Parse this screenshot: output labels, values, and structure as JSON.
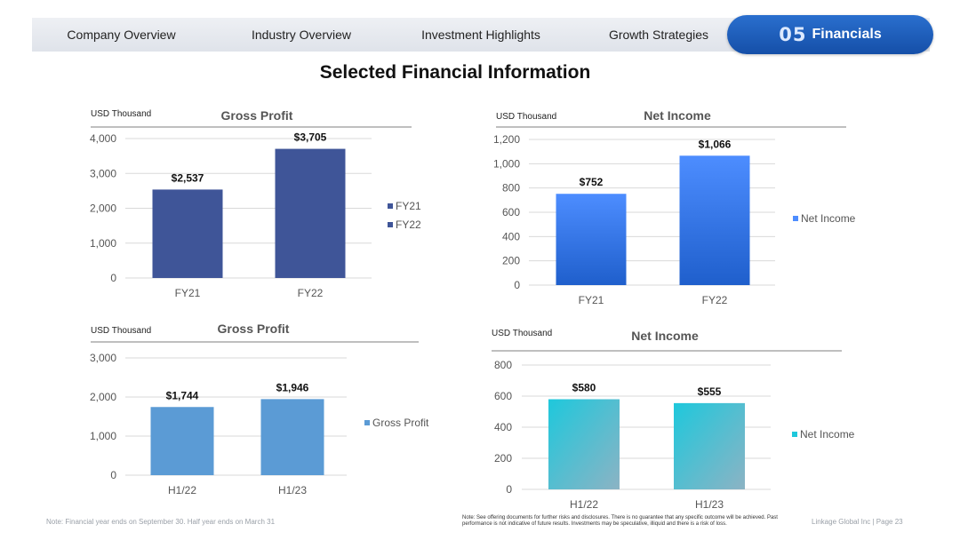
{
  "nav": {
    "items": [
      "Company Overview",
      "Industry Overview",
      "Investment Highlights",
      "Growth Strategies"
    ],
    "active_number": "05",
    "active_label": "Financials"
  },
  "page_title": "Selected Financial Information",
  "colors": {
    "gp_fy": "#3f5598",
    "ni_fy_top": "#4d8dff",
    "ni_fy_bottom": "#1f5fcc",
    "gp_half": "#5b9bd5",
    "ni_half_a": "#1ec8dc",
    "ni_half_b": "#8cb3c4",
    "axis_text": "#555555",
    "grid": "#d9d9d9"
  },
  "chart_data": [
    {
      "id": "gp_fy",
      "type": "bar",
      "title": "Gross Profit",
      "unit_label": "USD Thousand",
      "categories": [
        "FY21",
        "FY22"
      ],
      "series": [
        {
          "values": [
            2537,
            3705
          ]
        }
      ],
      "data_labels": [
        "$2,537",
        "$3,705"
      ],
      "legend": [
        "FY21",
        "FY22"
      ],
      "legend_position": "right",
      "ylim": [
        0,
        4000
      ],
      "yticks": [
        "0",
        "1,000",
        "2,000",
        "3,000",
        "4,000"
      ],
      "grid": true
    },
    {
      "id": "ni_fy",
      "type": "bar",
      "title": "Net Income",
      "unit_label": "USD Thousand",
      "categories": [
        "FY21",
        "FY22"
      ],
      "series": [
        {
          "name": "Net Income",
          "values": [
            752,
            1066
          ]
        }
      ],
      "data_labels": [
        "$752",
        "$1,066"
      ],
      "legend": [
        "Net Income"
      ],
      "legend_position": "right",
      "ylim": [
        0,
        1200
      ],
      "yticks": [
        "0",
        "200",
        "400",
        "600",
        "800",
        "1,000",
        "1,200"
      ],
      "grid": true
    },
    {
      "id": "gp_half",
      "type": "bar",
      "title": "Gross Profit",
      "unit_label": "USD Thousand",
      "categories": [
        "H1/22",
        "H1/23"
      ],
      "series": [
        {
          "name": "Gross Profit",
          "values": [
            1744,
            1946
          ]
        }
      ],
      "data_labels": [
        "$1,744",
        "$1,946"
      ],
      "legend": [
        "Gross Profit"
      ],
      "legend_position": "right",
      "ylim": [
        0,
        3000
      ],
      "yticks": [
        "0",
        "1,000",
        "2,000",
        "3,000"
      ],
      "grid": true
    },
    {
      "id": "ni_half",
      "type": "bar",
      "title": "Net Income",
      "unit_label": "USD Thousand",
      "categories": [
        "H1/22",
        "H1/23"
      ],
      "series": [
        {
          "name": "Net Income",
          "values": [
            580,
            555
          ]
        }
      ],
      "data_labels": [
        "$580",
        "$555"
      ],
      "legend": [
        "Net Income"
      ],
      "legend_position": "right",
      "ylim": [
        0,
        800
      ],
      "yticks": [
        "0",
        "200",
        "400",
        "600",
        "800"
      ],
      "grid": true
    }
  ],
  "footer": {
    "note_left": "Note: Financial year ends on September 30. Half year ends on March 31",
    "note_disclaimer": "Note: See offering documents for further risks and disclosures. There is no guarantee that any specific outcome will be achieved. Past performance is not indicative of future results. Investments may be speculative, illiquid and there is a risk of loss.",
    "page_number": "Linkage Global Inc | Page 23"
  }
}
